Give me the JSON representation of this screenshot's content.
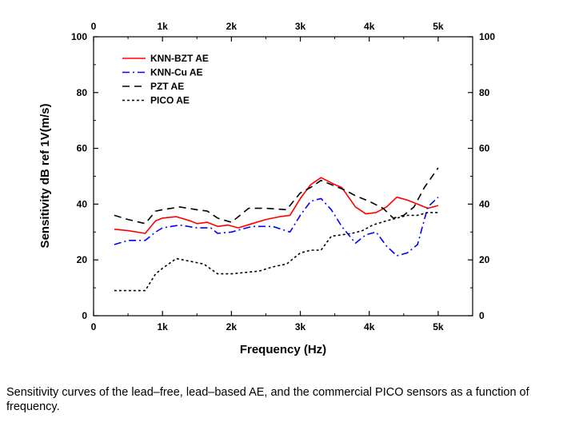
{
  "chart_data": {
    "type": "line",
    "xlabel": "Frequency (Hz)",
    "ylabel": "Sensitivity dB ref 1V(m/s)",
    "xlim": [
      0,
      5500
    ],
    "ylim": [
      0,
      100
    ],
    "x_ticks": [
      0,
      1000,
      2000,
      3000,
      4000,
      5000
    ],
    "x_tick_labels": [
      "0",
      "1k",
      "2k",
      "3k",
      "4k",
      "5k"
    ],
    "y_ticks": [
      0,
      20,
      40,
      60,
      80,
      100
    ],
    "y_tick_labels": [
      "0",
      "20",
      "40",
      "60",
      "80",
      "100"
    ],
    "mirror_axes": true,
    "grid": false,
    "legend_position": "top-left",
    "series": [
      {
        "name": "KNN-BZT AE",
        "color": "#ff0000",
        "style": "solid",
        "x": [
          300,
          500,
          750,
          900,
          1000,
          1200,
          1400,
          1500,
          1650,
          1800,
          1950,
          2100,
          2300,
          2500,
          2700,
          2850,
          3000,
          3150,
          3300,
          3500,
          3600,
          3800,
          3950,
          4100,
          4250,
          4400,
          4550,
          4700,
          4850,
          5000
        ],
        "y": [
          31,
          30.5,
          29.5,
          34,
          35,
          35.5,
          34,
          33,
          33.5,
          32,
          32.5,
          31.5,
          33,
          34.5,
          35.5,
          36,
          42,
          47,
          49.5,
          47,
          46,
          39,
          36.5,
          37,
          39,
          42.5,
          41.5,
          40,
          38.5,
          39.5
        ]
      },
      {
        "name": "KNN-Cu AE",
        "color": "#0000ff",
        "style": "dash-dot",
        "x": [
          300,
          500,
          750,
          900,
          1000,
          1250,
          1500,
          1700,
          1800,
          2000,
          2300,
          2600,
          2850,
          3000,
          3150,
          3300,
          3450,
          3600,
          3800,
          3950,
          4100,
          4250,
          4400,
          4550,
          4700,
          4850,
          5000
        ],
        "y": [
          25.5,
          27,
          27,
          30,
          31.5,
          32.5,
          31.5,
          31.5,
          29.5,
          30,
          32,
          32,
          30,
          36,
          41,
          42,
          38,
          32,
          26,
          29,
          30,
          25,
          21.5,
          22.5,
          25.5,
          39,
          42.5
        ]
      },
      {
        "name": "PZT AE",
        "color": "#000000",
        "style": "dashed",
        "x": [
          300,
          500,
          750,
          900,
          1000,
          1250,
          1500,
          1650,
          1800,
          2000,
          2250,
          2500,
          2800,
          3000,
          3150,
          3300,
          3450,
          3650,
          3800,
          4000,
          4200,
          4350,
          4500,
          4650,
          4800,
          5000
        ],
        "y": [
          36,
          34.5,
          33,
          37.5,
          38,
          39,
          38,
          37.5,
          35,
          33.5,
          38.5,
          38.5,
          38,
          44,
          46,
          48.5,
          47,
          45,
          43,
          41,
          38.5,
          35,
          36,
          39,
          46,
          53
        ]
      },
      {
        "name": "PICO AE",
        "color": "#000000",
        "style": "dotted",
        "x": [
          300,
          500,
          750,
          900,
          1000,
          1200,
          1400,
          1600,
          1800,
          2000,
          2200,
          2400,
          2600,
          2800,
          3000,
          3150,
          3300,
          3450,
          3600,
          3750,
          3900,
          4050,
          4250,
          4400,
          4550,
          4700,
          4850,
          5000
        ],
        "y": [
          9,
          9,
          9,
          15,
          17,
          20.5,
          19.5,
          18.5,
          15,
          15,
          15.5,
          16,
          17.5,
          18.5,
          22.5,
          23.5,
          23.5,
          28.5,
          29,
          29.5,
          30.5,
          32.5,
          34,
          35,
          36,
          36,
          37,
          37
        ]
      }
    ]
  },
  "caption": "Sensitivity curves of the lead–free, lead–based AE, and the commercial PICO sensors as a function of frequency."
}
